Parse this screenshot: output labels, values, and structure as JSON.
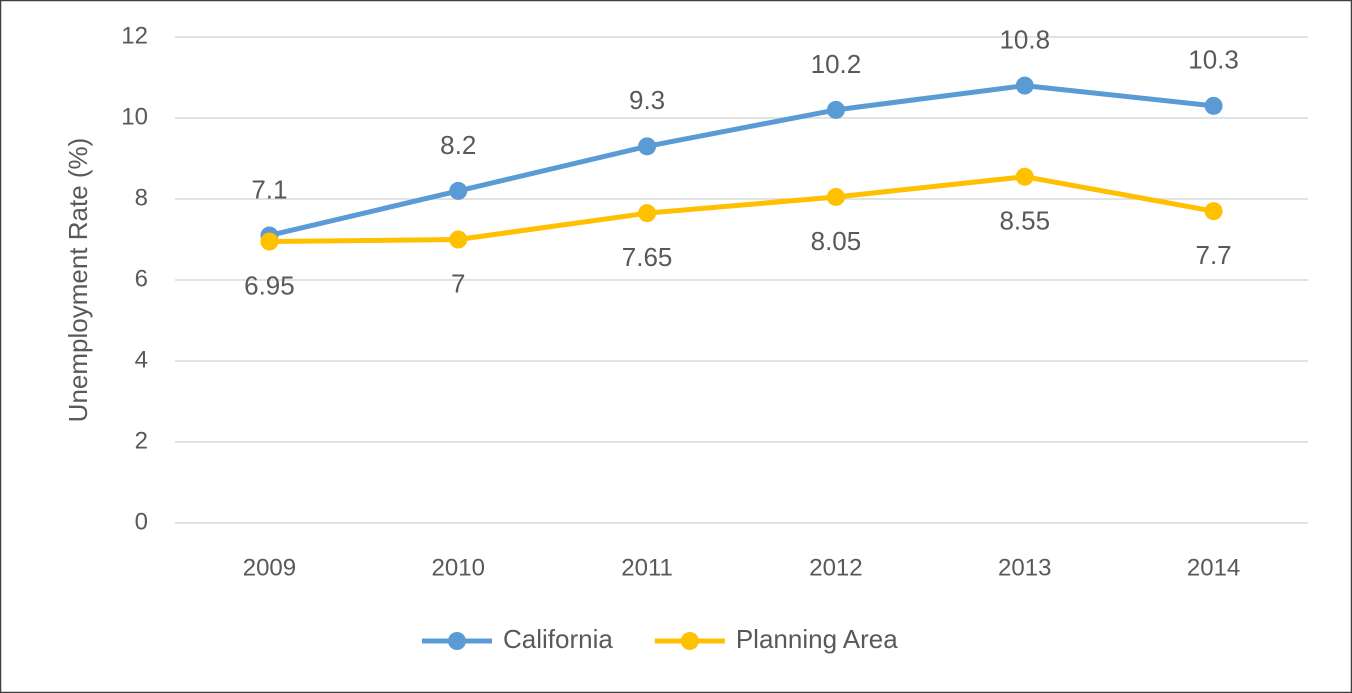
{
  "chart_data": {
    "type": "line",
    "y_label": "Unemployment Rate (%)",
    "categories": [
      "2009",
      "2010",
      "2011",
      "2012",
      "2013",
      "2014"
    ],
    "series": [
      {
        "name": "California",
        "color": "#5b9bd5",
        "values": [
          7.1,
          8.2,
          9.3,
          10.2,
          10.8,
          10.3
        ]
      },
      {
        "name": "Planning Area",
        "color": "#ffc000",
        "values": [
          6.95,
          7,
          7.65,
          8.05,
          8.55,
          7.7
        ]
      }
    ],
    "ylim": [
      0,
      12
    ],
    "yticks": [
      0,
      2,
      4,
      6,
      8,
      10,
      12
    ],
    "grid": true,
    "legend": "bottom"
  }
}
